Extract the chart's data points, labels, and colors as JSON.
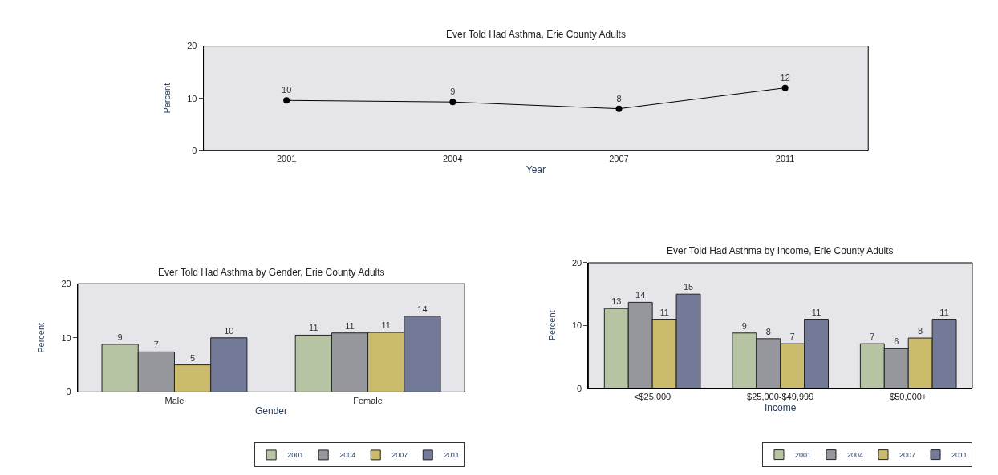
{
  "chart_data": [
    {
      "type": "line",
      "title": "Ever Told Had Asthma, Erie County Adults",
      "xlabel": "Year",
      "ylabel": "Percent",
      "categories": [
        "2001",
        "2004",
        "2007",
        "2011"
      ],
      "values": [
        9.6,
        9.3,
        8.0,
        12.0
      ],
      "value_labels": [
        "10",
        "9",
        "8",
        "12"
      ],
      "color": "#000000",
      "marker": "circle",
      "ylim": [
        0,
        20
      ],
      "yticks": [
        0,
        10,
        20
      ],
      "grid": false,
      "legend": false
    },
    {
      "type": "bar",
      "title": "Ever Told Had Asthma by Gender, Erie County Adults",
      "xlabel": "Gender",
      "ylabel": "Percent",
      "categories": [
        "Male",
        "Female"
      ],
      "series": [
        {
          "name": "2001",
          "color": "#b6c4a4",
          "values": [
            8.8,
            10.5
          ],
          "value_labels": [
            "9",
            "11"
          ]
        },
        {
          "name": "2004",
          "color": "#96979c",
          "values": [
            7.4,
            10.9
          ],
          "value_labels": [
            "7",
            "11"
          ]
        },
        {
          "name": "2007",
          "color": "#cbbb6c",
          "values": [
            5.0,
            11.0
          ],
          "value_labels": [
            "5",
            "11"
          ]
        },
        {
          "name": "2011",
          "color": "#727a98",
          "values": [
            10.0,
            14.0
          ],
          "value_labels": [
            "10",
            "14"
          ]
        }
      ],
      "ylim": [
        0,
        20
      ],
      "yticks": [
        0,
        10,
        20
      ],
      "grid": false,
      "legend": "bottom right"
    },
    {
      "type": "bar",
      "title": "Ever Told Had Asthma by Income, Erie County Adults",
      "xlabel": "Income",
      "ylabel": "Percent",
      "categories": [
        "<$25,000",
        "$25,000-$49,999",
        "$50,000+"
      ],
      "series": [
        {
          "name": "2001",
          "color": "#b6c4a4",
          "values": [
            12.7,
            8.8,
            7.1
          ],
          "value_labels": [
            "13",
            "9",
            "7"
          ]
        },
        {
          "name": "2004",
          "color": "#96979c",
          "values": [
            13.7,
            7.9,
            6.3
          ],
          "value_labels": [
            "14",
            "8",
            "6"
          ]
        },
        {
          "name": "2007",
          "color": "#cbbb6c",
          "values": [
            11.0,
            7.1,
            8.0
          ],
          "value_labels": [
            "11",
            "7",
            "8"
          ]
        },
        {
          "name": "2011",
          "color": "#727a98",
          "values": [
            15.0,
            11.0,
            11.0
          ],
          "value_labels": [
            "15",
            "11",
            "11"
          ]
        }
      ],
      "ylim": [
        0,
        20
      ],
      "yticks": [
        0,
        10,
        20
      ],
      "grid": false,
      "legend": "bottom right"
    }
  ]
}
